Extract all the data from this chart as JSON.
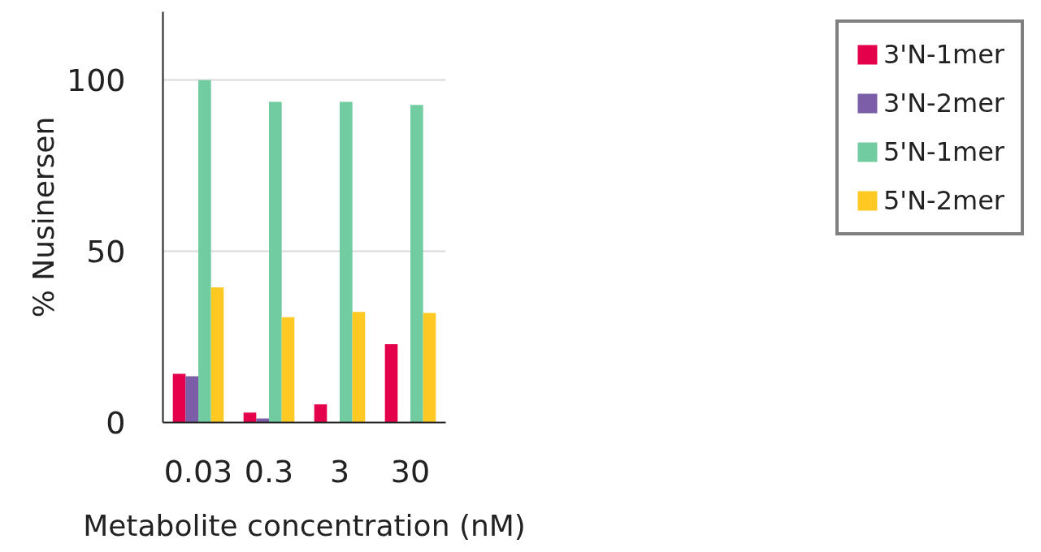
{
  "chart_data": {
    "type": "bar",
    "xlabel": "Metabolite concentration (nM)",
    "ylabel": "% Nusinersen",
    "categories": [
      "0.03",
      "0.3",
      "3",
      "30"
    ],
    "series": [
      {
        "name": "3'N-1mer",
        "color": "#e4004b",
        "values": [
          14.2,
          2.9,
          5.3,
          22.9
        ]
      },
      {
        "name": "3'N-2mer",
        "color": "#7b5ea7",
        "values": [
          13.5,
          1.2,
          null,
          null
        ]
      },
      {
        "name": "5'N-1mer",
        "color": "#71cca1",
        "values": [
          100,
          93.7,
          93.7,
          92.8
        ]
      },
      {
        "name": "5'N-2mer",
        "color": "#ffc924",
        "values": [
          39.5,
          30.8,
          32.3,
          32.0
        ]
      }
    ],
    "ylim": [
      0,
      120
    ],
    "yticks": [
      0,
      50,
      100
    ],
    "grid": "y",
    "legend": "right"
  }
}
